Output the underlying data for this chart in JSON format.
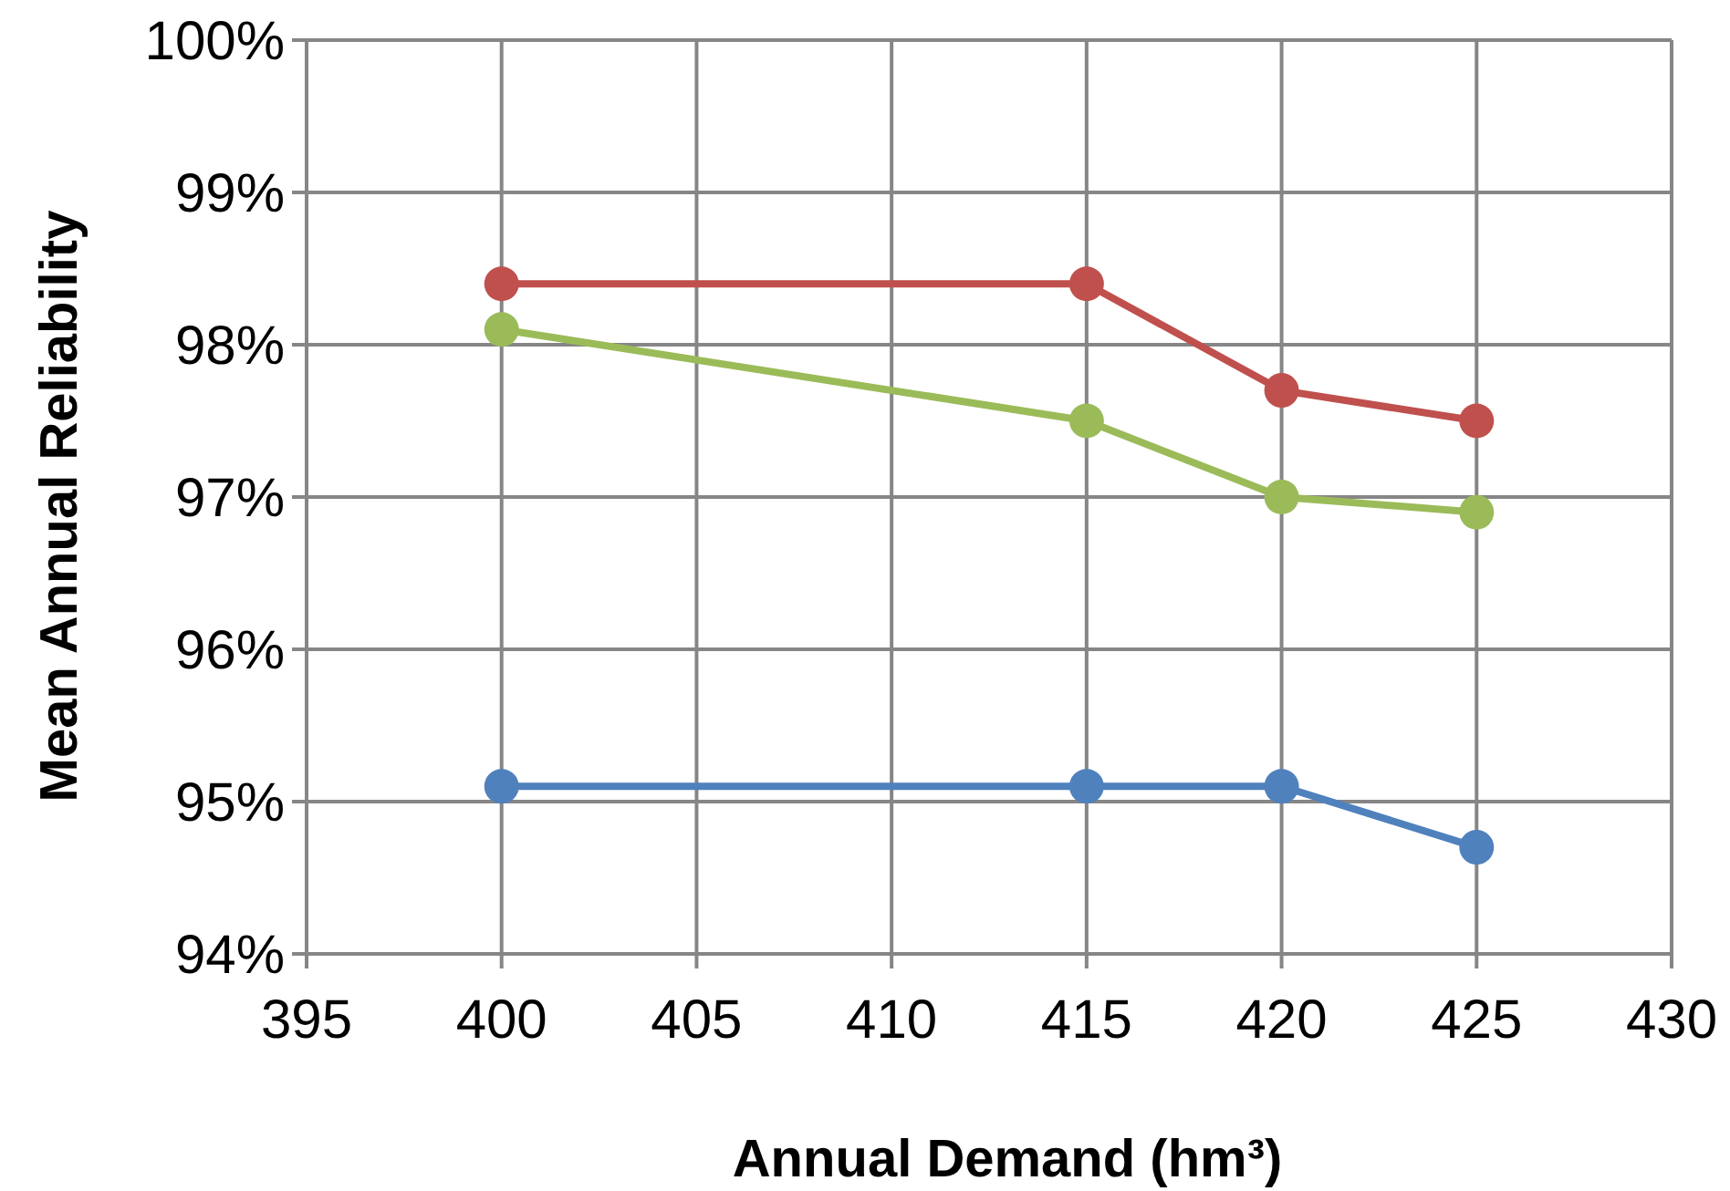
{
  "chart_data": {
    "type": "line",
    "xlabel": "Annual Demand (hm³)",
    "ylabel": "Mean Annual Reliability",
    "x": [
      400,
      415,
      420,
      425
    ],
    "series": [
      {
        "color": "#4f81bd",
        "values": [
          95.1,
          95.1,
          95.1,
          94.7
        ]
      },
      {
        "color": "#c0504d",
        "values": [
          98.4,
          98.4,
          97.7,
          97.5
        ]
      },
      {
        "color": "#9bbb59",
        "values": [
          98.1,
          97.5,
          97.0,
          96.9
        ]
      }
    ],
    "xlim": [
      395,
      430
    ],
    "xticks": [
      395,
      400,
      405,
      410,
      415,
      420,
      425,
      430
    ],
    "ylim": [
      94,
      100
    ],
    "yticks": [
      {
        "value": 94,
        "label": "94%"
      },
      {
        "value": 95,
        "label": "95%"
      },
      {
        "value": 96,
        "label": "96%"
      },
      {
        "value": 97,
        "label": "97%"
      },
      {
        "value": 98,
        "label": "98%"
      },
      {
        "value": 99,
        "label": "99%"
      },
      {
        "value": 100,
        "label": "100%"
      }
    ],
    "grid": true,
    "marker": "circle",
    "line_style": "solid"
  }
}
